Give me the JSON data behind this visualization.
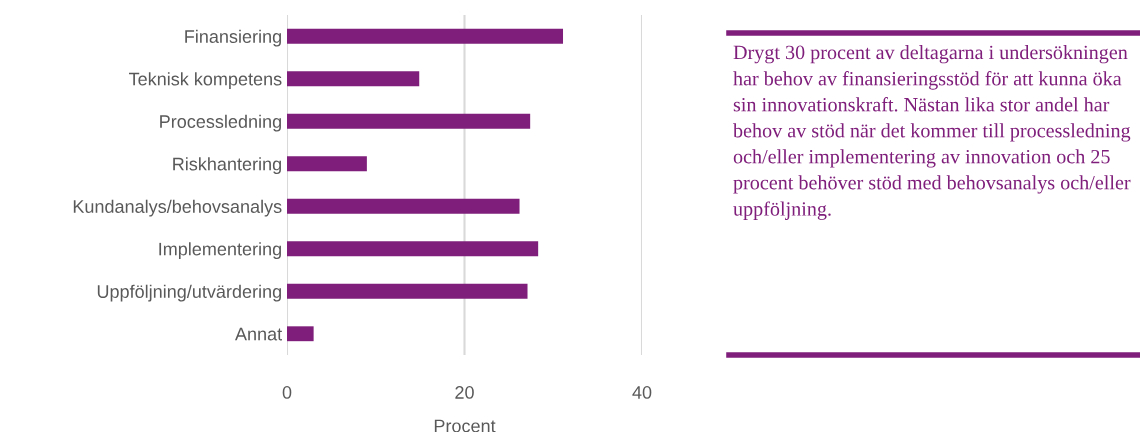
{
  "chart_data": {
    "type": "bar",
    "orientation": "horizontal",
    "xlabel": "Procent",
    "categories": [
      "Finansiering",
      "Teknisk kompetens",
      "Processledning",
      "Riskhantering",
      "Kundanalys/behovsanalys",
      "Implementering",
      "Uppföljning/utvärdering",
      "Annat"
    ],
    "values": [
      31.1,
      14.9,
      27.4,
      9.0,
      26.2,
      28.3,
      27.1,
      3.0
    ],
    "color": "#7f1f7b",
    "xlim": [
      0,
      40
    ],
    "xticks": [
      0,
      20,
      40
    ],
    "grid": "x",
    "annotations": [
      "Drygt 30 procent av deltagarna i undersökningen har behov av finansieringsstöd för att kunna öka sin innovationskraft. Nästan lika stor andel har behov av stöd när det kommer till processledning och/eller implementering av innovation och 25 procent behöver stöd med behovsanalys och/eller uppföljning."
    ]
  }
}
